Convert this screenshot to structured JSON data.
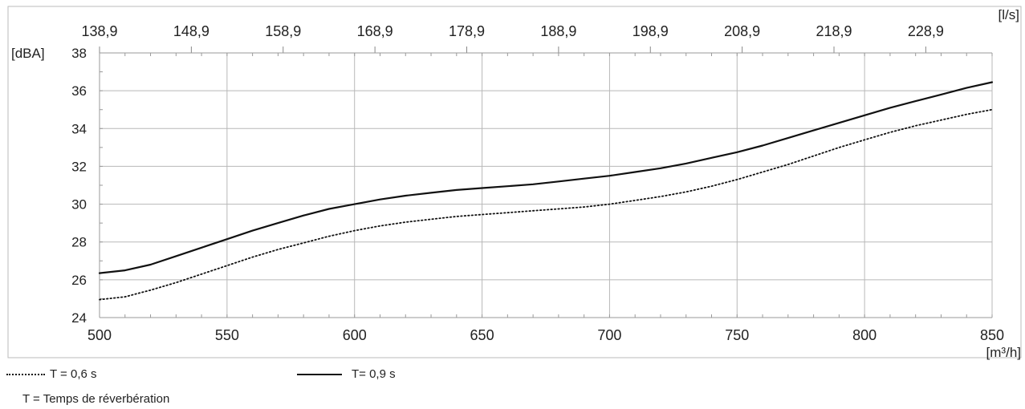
{
  "chart_data": {
    "type": "line",
    "xlabel": "[m³/h]",
    "ylabel": "[dBA]",
    "secondary_xlabel": "[l/s]",
    "xlim": [
      500,
      850
    ],
    "ylim": [
      24,
      38
    ],
    "x_ticks": [
      "500",
      "550",
      "600",
      "650",
      "700",
      "750",
      "800",
      "850"
    ],
    "y_ticks": [
      "24",
      "26",
      "28",
      "30",
      "32",
      "34",
      "36",
      "38"
    ],
    "secondary_x_ticks": [
      "138,9",
      "148,9",
      "158,9",
      "168,9",
      "178,9",
      "188,9",
      "198,9",
      "208,9",
      "218,9",
      "228,9"
    ],
    "secondary_x_positions": [
      500,
      536,
      572,
      608,
      644,
      680,
      716,
      752,
      788,
      824
    ],
    "grid": true,
    "legend_position": "bottom",
    "series": [
      {
        "name": "T = 0,6 s",
        "style": "dotted",
        "color": "#111111",
        "x": [
          500,
          510,
          520,
          530,
          540,
          550,
          560,
          570,
          580,
          590,
          600,
          610,
          620,
          630,
          640,
          650,
          660,
          670,
          680,
          690,
          700,
          710,
          720,
          730,
          740,
          750,
          760,
          770,
          780,
          790,
          800,
          810,
          820,
          830,
          840,
          850
        ],
        "y": [
          24.95,
          25.1,
          25.45,
          25.85,
          26.3,
          26.75,
          27.2,
          27.6,
          27.95,
          28.3,
          28.6,
          28.85,
          29.05,
          29.2,
          29.35,
          29.45,
          29.55,
          29.65,
          29.75,
          29.85,
          30.0,
          30.2,
          30.4,
          30.65,
          30.95,
          31.3,
          31.7,
          32.1,
          32.55,
          33.0,
          33.4,
          33.8,
          34.15,
          34.45,
          34.75,
          35.0
        ]
      },
      {
        "name": "T= 0,9 s",
        "style": "solid",
        "color": "#111111",
        "x": [
          500,
          510,
          520,
          530,
          540,
          550,
          560,
          570,
          580,
          590,
          600,
          610,
          620,
          630,
          640,
          650,
          660,
          670,
          680,
          690,
          700,
          710,
          720,
          730,
          740,
          750,
          760,
          770,
          780,
          790,
          800,
          810,
          820,
          830,
          840,
          850
        ],
        "y": [
          26.35,
          26.5,
          26.8,
          27.25,
          27.7,
          28.15,
          28.6,
          29.0,
          29.4,
          29.75,
          30.0,
          30.25,
          30.45,
          30.6,
          30.75,
          30.85,
          30.95,
          31.05,
          31.2,
          31.35,
          31.5,
          31.7,
          31.9,
          32.15,
          32.45,
          32.75,
          33.1,
          33.5,
          33.9,
          34.3,
          34.7,
          35.1,
          35.45,
          35.8,
          36.15,
          36.45
        ]
      }
    ]
  },
  "legend": {
    "dotted_label": "T = 0,6 s",
    "solid_label": "T= 0,9 s"
  },
  "note": "T = Temps de réverbération"
}
